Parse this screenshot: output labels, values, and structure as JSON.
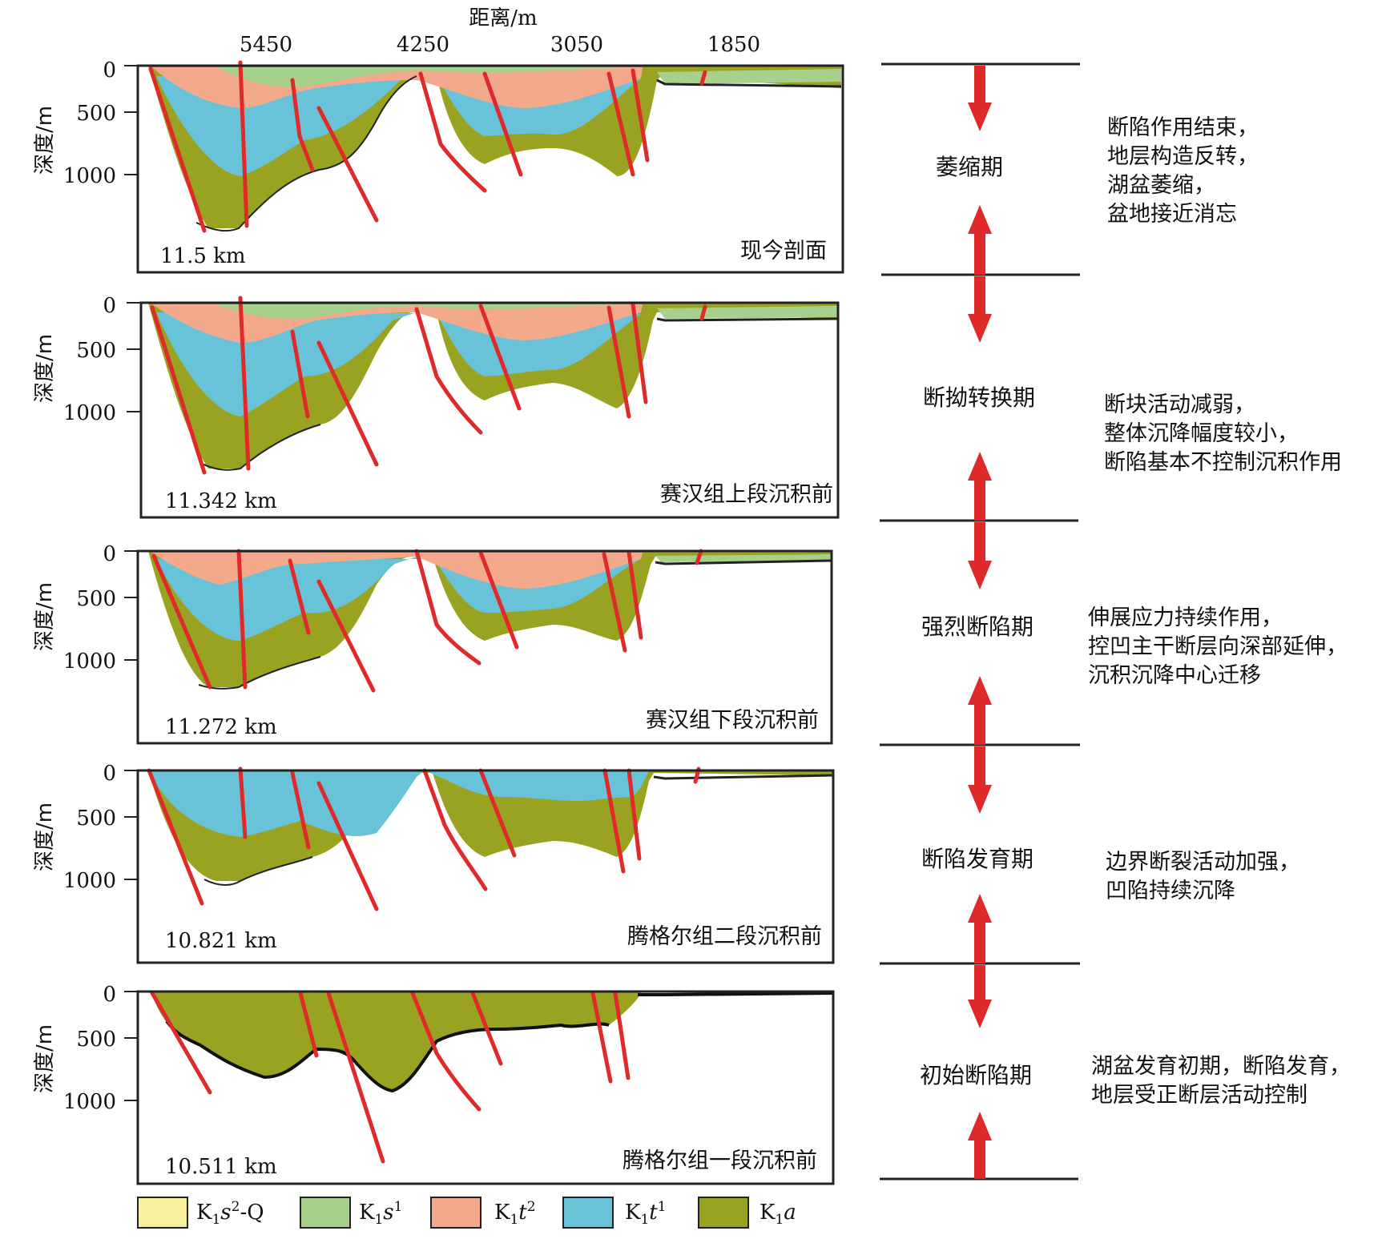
{
  "axis": {
    "top_title": "距离/m",
    "top_ticks": [
      "5450",
      "4250",
      "3050",
      "1850"
    ],
    "depth_label": "深度/m",
    "depth_ticks": [
      "0",
      "500",
      "1000"
    ]
  },
  "panels": [
    {
      "width_label": "11.5 km",
      "stage_label": "现今剖面"
    },
    {
      "width_label": "11.342 km",
      "stage_label": "赛汉组上段沉积前"
    },
    {
      "width_label": "11.272 km",
      "stage_label": "赛汉组下段沉积前"
    },
    {
      "width_label": "10.821 km",
      "stage_label": "腾格尔组二段沉积前"
    },
    {
      "width_label": "10.511 km",
      "stage_label": "腾格尔组一段沉积前"
    }
  ],
  "phases": [
    {
      "name": "萎缩期",
      "desc": [
        "断陷作用结束，",
        "地层构造反转，",
        "湖盆萎缩，",
        "盆地接近消忘"
      ]
    },
    {
      "name": "断拗转换期",
      "desc": [
        "断块活动减弱，",
        "整体沉降幅度较小，",
        "断陷基本不控制沉积作用"
      ]
    },
    {
      "name": "强烈断陷期",
      "desc": [
        "伸展应力持续作用，",
        "控凹主干断层向深部延伸，",
        "沉积沉降中心迁移"
      ]
    },
    {
      "name": "断陷发育期",
      "desc": [
        "边界断裂活动加强，",
        "凹陷持续沉降"
      ]
    },
    {
      "name": "初始断陷期",
      "desc": [
        "湖盆发育初期，断陷发育，",
        "地层受正断层活动控制"
      ]
    }
  ],
  "legend": [
    {
      "main": "K",
      "sub": "1",
      "rest": "s",
      "sup": "2",
      "tail": "-Q",
      "color": "#f7ef9c"
    },
    {
      "main": "K",
      "sub": "1",
      "rest": "s",
      "sup": "1",
      "tail": "",
      "color": "#a8d08d"
    },
    {
      "main": "K",
      "sub": "1",
      "rest": "t",
      "sup": "2",
      "tail": "",
      "color": "#f2a98c"
    },
    {
      "main": "K",
      "sub": "1",
      "rest": "t",
      "sup": "1",
      "tail": "",
      "color": "#68c3d8"
    },
    {
      "main": "K",
      "sub": "1",
      "rest": "a",
      "sup": "",
      "tail": "",
      "color": "#9aa321"
    }
  ],
  "colors": {
    "ka": "#9aa321",
    "kt1": "#68c3d8",
    "kt2": "#f2a98c",
    "ks1": "#a8d08d",
    "ks2": "#f7ef9c",
    "fault": "#e02a2a",
    "arrow": "#e02a2a"
  }
}
